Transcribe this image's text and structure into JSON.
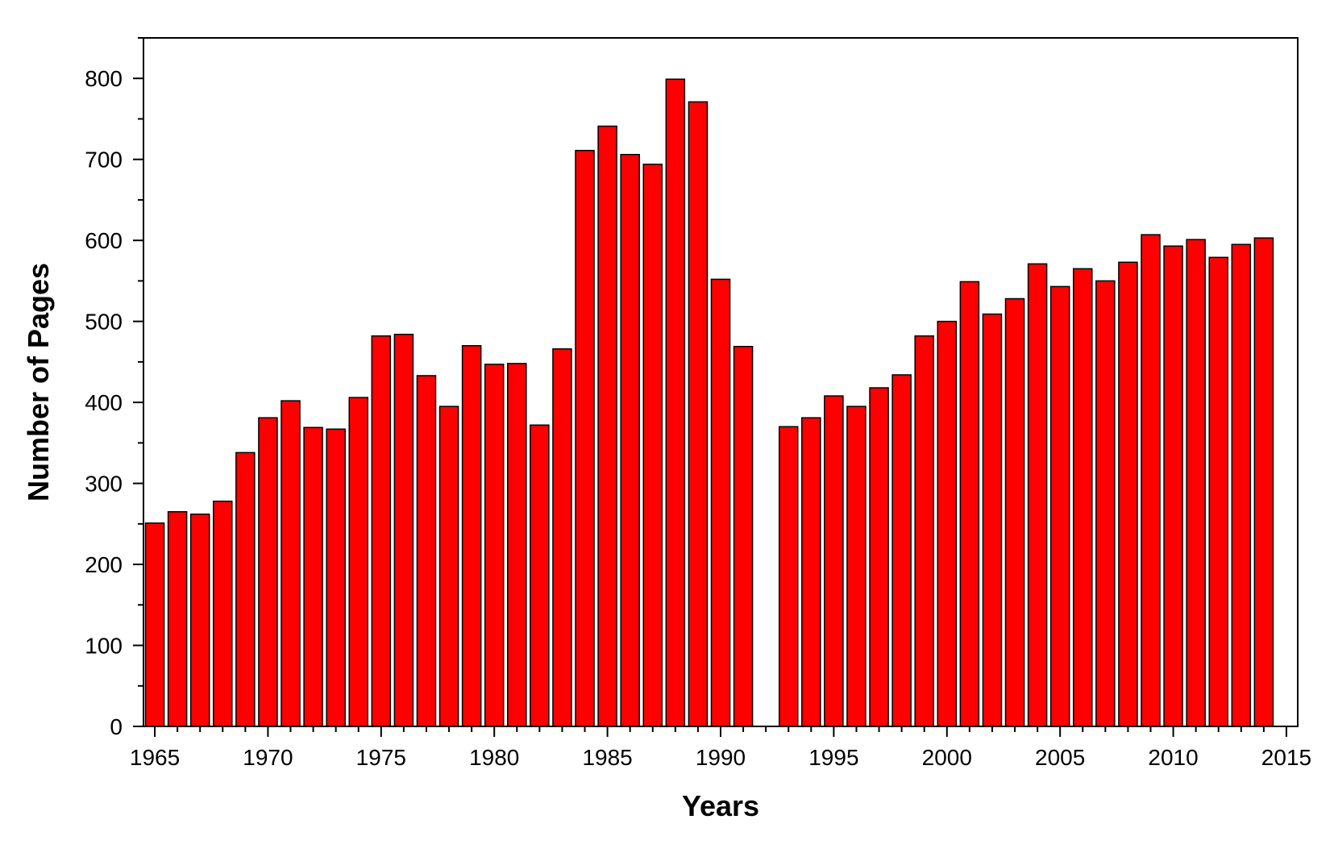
{
  "chart_data": {
    "type": "bar",
    "title": "",
    "xlabel": "Years",
    "ylabel": "Number of Pages",
    "xlim": [
      1964.5,
      2015.5
    ],
    "ylim": [
      0,
      850
    ],
    "x_ticks": [
      1965,
      1970,
      1975,
      1980,
      1985,
      1990,
      1995,
      2000,
      2005,
      2010,
      2015
    ],
    "y_ticks": [
      0,
      100,
      200,
      300,
      400,
      500,
      600,
      700,
      800
    ],
    "grid": false,
    "legend": "none",
    "bar_color": "#ff0000",
    "edge_color": "#000000",
    "x": [
      1965,
      1966,
      1967,
      1968,
      1969,
      1970,
      1971,
      1972,
      1973,
      1974,
      1975,
      1976,
      1977,
      1978,
      1979,
      1980,
      1981,
      1982,
      1983,
      1984,
      1985,
      1986,
      1987,
      1988,
      1989,
      1990,
      1991,
      1993,
      1994,
      1995,
      1996,
      1997,
      1998,
      1999,
      2000,
      2001,
      2002,
      2003,
      2004,
      2005,
      2006,
      2007,
      2008,
      2009,
      2010,
      2011,
      2012,
      2013,
      2014
    ],
    "values": [
      251,
      265,
      262,
      278,
      338,
      381,
      402,
      369,
      367,
      406,
      482,
      484,
      433,
      395,
      470,
      447,
      448,
      372,
      466,
      711,
      741,
      706,
      694,
      799,
      771,
      552,
      469,
      370,
      381,
      408,
      395,
      418,
      434,
      482,
      500,
      549,
      509,
      528,
      571,
      543,
      565,
      550,
      573,
      607,
      593,
      601,
      579,
      595,
      603
    ]
  }
}
